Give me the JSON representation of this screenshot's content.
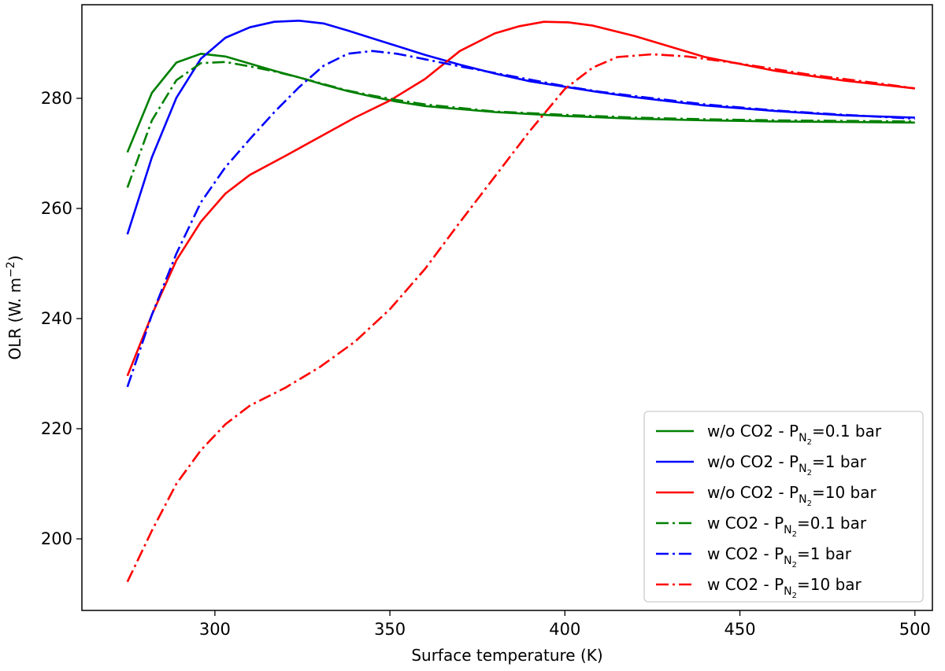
{
  "chart_data": {
    "type": "line",
    "title": "",
    "xlabel": "Surface temperature (K)",
    "ylabel": "OLR (W. m",
    "ylabel_sup": "−2",
    "ylabel_close": ")",
    "xlim": [
      262,
      505
    ],
    "ylim": [
      187,
      297
    ],
    "xticks": [
      300,
      350,
      400,
      450,
      500
    ],
    "yticks": [
      200,
      220,
      240,
      260,
      280
    ],
    "legend_position": "lower-right",
    "series": [
      {
        "name": "w/o CO2 - P_N2=0.1 bar",
        "legend_prefix": "w/o CO2 - P",
        "legend_sub": "N",
        "legend_subsub": "2",
        "legend_suffix": "=0.1 bar",
        "color": "#008000",
        "style": "solid",
        "x": [
          275,
          282,
          289,
          296,
          303,
          310,
          317,
          324,
          331,
          338,
          345,
          352,
          360,
          380,
          400,
          420,
          440,
          460,
          480,
          500
        ],
        "y": [
          270.2,
          281,
          286.5,
          288.1,
          287.6,
          286.3,
          285,
          283.8,
          282.5,
          281.3,
          280.3,
          279.4,
          278.6,
          277.5,
          276.8,
          276.3,
          276,
          275.8,
          275.7,
          275.6
        ]
      },
      {
        "name": "w/o CO2 - P_N2=1 bar",
        "legend_prefix": "w/o CO2 - P",
        "legend_sub": "N",
        "legend_subsub": "2",
        "legend_suffix": "=1 bar",
        "color": "#0000ff",
        "style": "solid",
        "x": [
          275,
          282,
          289,
          296,
          303,
          310,
          317,
          324,
          331,
          338,
          345,
          352,
          360,
          370,
          380,
          390,
          400,
          410,
          420,
          440,
          460,
          480,
          500
        ],
        "y": [
          255.3,
          269.3,
          280.1,
          287.2,
          291,
          292.9,
          293.9,
          294.1,
          293.6,
          292.3,
          290.9,
          289.5,
          287.9,
          286.1,
          284.5,
          283.1,
          282.1,
          281.1,
          280.2,
          278.7,
          277.7,
          276.9,
          276.5
        ]
      },
      {
        "name": "w/o CO2 - P_N2=10 bar",
        "legend_prefix": "w/o CO2 - P",
        "legend_sub": "N",
        "legend_subsub": "2",
        "legend_suffix": "=10 bar",
        "color": "#ff0000",
        "style": "solid",
        "x": [
          275,
          282,
          289,
          296,
          303,
          310,
          320,
          330,
          340,
          350,
          360,
          370,
          380,
          387,
          394,
          401,
          408,
          420,
          440,
          460,
          480,
          500
        ],
        "y": [
          229.6,
          240.7,
          250.6,
          257.6,
          262.7,
          266.1,
          269.5,
          273,
          276.5,
          279.6,
          283.5,
          288.6,
          291.8,
          293.1,
          293.9,
          293.8,
          293.2,
          291.3,
          287.5,
          285,
          283.2,
          281.8
        ]
      },
      {
        "name": "w CO2 - P_N2=0.1 bar",
        "legend_prefix": "w CO2 - P",
        "legend_sub": "N",
        "legend_subsub": "2",
        "legend_suffix": "=0.1 bar",
        "color": "#008000",
        "style": "dashdot",
        "x": [
          275,
          282,
          289,
          296,
          303,
          310,
          317,
          324,
          331,
          338,
          345,
          352,
          360,
          380,
          400,
          420,
          440,
          460,
          480,
          500
        ],
        "y": [
          263.8,
          276,
          283.3,
          286.4,
          286.6,
          285.8,
          284.9,
          283.8,
          282.6,
          281.4,
          280.5,
          279.7,
          278.9,
          277.6,
          277,
          276.5,
          276.2,
          276,
          275.9,
          275.8
        ]
      },
      {
        "name": "w CO2 - P_N2=1 bar",
        "legend_prefix": "w CO2 - P",
        "legend_sub": "N",
        "legend_subsub": "2",
        "legend_suffix": "=1 bar",
        "color": "#0000ff",
        "style": "dashdot",
        "x": [
          275,
          282,
          289,
          296,
          303,
          310,
          317,
          324,
          331,
          338,
          345,
          352,
          360,
          370,
          380,
          390,
          400,
          410,
          420,
          440,
          460,
          480,
          500
        ],
        "y": [
          227.6,
          240.7,
          251.8,
          261.1,
          267.5,
          272.6,
          277.5,
          282,
          285.9,
          288.1,
          288.6,
          288.1,
          287.1,
          285.8,
          284.6,
          283.4,
          282.2,
          281.2,
          280.4,
          278.9,
          277.8,
          277,
          276.3
        ]
      },
      {
        "name": "w CO2 - P_N2=10 bar",
        "legend_prefix": "w CO2 - P",
        "legend_sub": "N",
        "legend_subsub": "2",
        "legend_suffix": "=10 bar",
        "color": "#ff0000",
        "style": "dashdot",
        "x": [
          275,
          282,
          289,
          296,
          303,
          310,
          320,
          330,
          340,
          350,
          360,
          370,
          380,
          390,
          400,
          408,
          415,
          425,
          435,
          450,
          470,
          490,
          500
        ],
        "y": [
          192.2,
          201.5,
          210,
          216.1,
          220.8,
          224.2,
          227.4,
          231.2,
          235.8,
          241.7,
          249,
          257.5,
          265.8,
          274.1,
          281.7,
          285.6,
          287.5,
          288,
          287.6,
          286.3,
          284.3,
          282.7,
          281.8
        ]
      }
    ]
  }
}
